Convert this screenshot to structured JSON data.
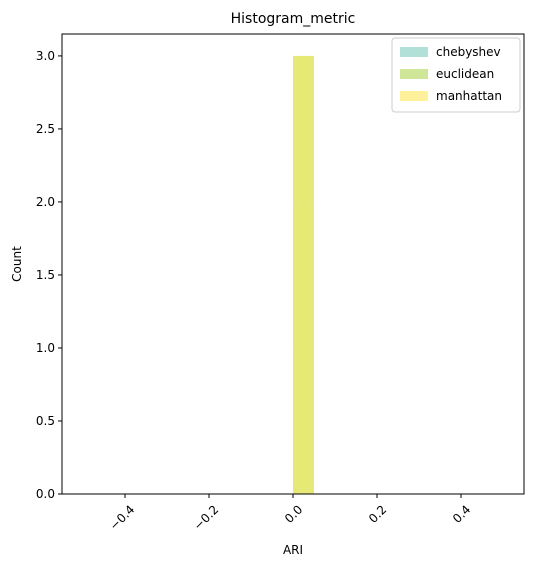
{
  "chart_data": {
    "type": "bar",
    "title": "Histogram_metric",
    "xlabel": "ARI",
    "ylabel": "Count",
    "xlim": [
      -0.55,
      0.55
    ],
    "ylim": [
      0,
      3.15
    ],
    "xticks": [
      -0.4,
      -0.2,
      0.0,
      0.2,
      0.4
    ],
    "xtick_labels": [
      "−0.4",
      "−0.2",
      "0.0",
      "0.2",
      "0.4"
    ],
    "yticks": [
      0.0,
      0.5,
      1.0,
      1.5,
      2.0,
      2.5,
      3.0
    ],
    "ytick_labels": [
      "0.0",
      "0.5",
      "1.0",
      "1.5",
      "2.0",
      "2.5",
      "3.0"
    ],
    "x_tick_rotation": 45,
    "grid": false,
    "legend_position": "top-right",
    "series": [
      {
        "name": "chebyshev",
        "color": "#b1e0d8",
        "bins": [
          {
            "x0": 0.0,
            "x1": 0.05,
            "count": 1
          }
        ]
      },
      {
        "name": "euclidean",
        "color": "#cfe598",
        "bins": [
          {
            "x0": 0.0,
            "x1": 0.05,
            "count": 1
          }
        ]
      },
      {
        "name": "manhattan",
        "color": "#fff19a",
        "bins": [
          {
            "x0": 0.0,
            "x1": 0.05,
            "count": 1
          }
        ]
      }
    ],
    "stack_color": "#e7e977"
  }
}
